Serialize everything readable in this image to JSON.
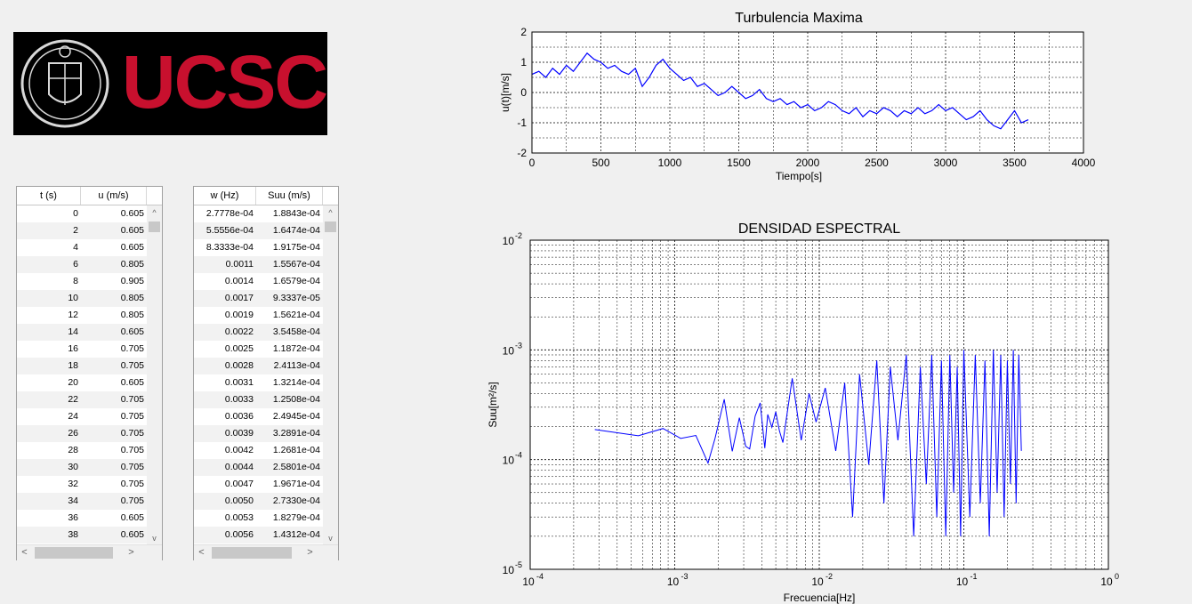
{
  "logo": {
    "text": "UCSC",
    "brand_color": "#c8102e"
  },
  "time_table": {
    "headers": [
      "t (s)",
      "u (m/s)"
    ],
    "rows": [
      [
        "0",
        "0.605"
      ],
      [
        "2",
        "0.605"
      ],
      [
        "4",
        "0.605"
      ],
      [
        "6",
        "0.805"
      ],
      [
        "8",
        "0.905"
      ],
      [
        "10",
        "0.805"
      ],
      [
        "12",
        "0.805"
      ],
      [
        "14",
        "0.605"
      ],
      [
        "16",
        "0.705"
      ],
      [
        "18",
        "0.705"
      ],
      [
        "20",
        "0.605"
      ],
      [
        "22",
        "0.705"
      ],
      [
        "24",
        "0.705"
      ],
      [
        "26",
        "0.705"
      ],
      [
        "28",
        "0.705"
      ],
      [
        "30",
        "0.705"
      ],
      [
        "32",
        "0.705"
      ],
      [
        "34",
        "0.705"
      ],
      [
        "36",
        "0.605"
      ],
      [
        "38",
        "0.605"
      ]
    ],
    "scroll_up": "^",
    "scroll_down": "v",
    "scroll_left": "<",
    "scroll_right": ">"
  },
  "freq_table": {
    "headers": [
      "w (Hz)",
      "Suu (m/s)"
    ],
    "rows": [
      [
        "2.7778e-04",
        "1.8843e-04"
      ],
      [
        "5.5556e-04",
        "1.6474e-04"
      ],
      [
        "8.3333e-04",
        "1.9175e-04"
      ],
      [
        "0.0011",
        "1.5567e-04"
      ],
      [
        "0.0014",
        "1.6579e-04"
      ],
      [
        "0.0017",
        "9.3337e-05"
      ],
      [
        "0.0019",
        "1.5621e-04"
      ],
      [
        "0.0022",
        "3.5458e-04"
      ],
      [
        "0.0025",
        "1.1872e-04"
      ],
      [
        "0.0028",
        "2.4113e-04"
      ],
      [
        "0.0031",
        "1.3214e-04"
      ],
      [
        "0.0033",
        "1.2508e-04"
      ],
      [
        "0.0036",
        "2.4945e-04"
      ],
      [
        "0.0039",
        "3.2891e-04"
      ],
      [
        "0.0042",
        "1.2681e-04"
      ],
      [
        "0.0044",
        "2.5801e-04"
      ],
      [
        "0.0047",
        "1.9671e-04"
      ],
      [
        "0.0050",
        "2.7330e-04"
      ],
      [
        "0.0053",
        "1.8279e-04"
      ],
      [
        "0.0056",
        "1.4312e-04"
      ]
    ],
    "scroll_up": "^",
    "scroll_down": "v",
    "scroll_left": "<",
    "scroll_right": ">"
  },
  "chart_data": [
    {
      "type": "line",
      "title": "Turbulencia Maxima",
      "xlabel": "Tiempo[s]",
      "ylabel": "u(t)[m/s]",
      "xlim": [
        0,
        4000
      ],
      "ylim": [
        -2,
        2
      ],
      "xticks": [
        0,
        500,
        1000,
        1500,
        2000,
        2500,
        3000,
        3500,
        4000
      ],
      "yticks": [
        -2,
        -1,
        0,
        1,
        2
      ],
      "grid": true,
      "color": "#0000ff",
      "x": [
        0,
        50,
        100,
        150,
        200,
        250,
        300,
        350,
        400,
        450,
        500,
        550,
        600,
        650,
        700,
        750,
        800,
        850,
        900,
        950,
        1000,
        1050,
        1100,
        1150,
        1200,
        1250,
        1300,
        1350,
        1400,
        1450,
        1500,
        1550,
        1600,
        1650,
        1700,
        1750,
        1800,
        1850,
        1900,
        1950,
        2000,
        2050,
        2100,
        2150,
        2200,
        2250,
        2300,
        2350,
        2400,
        2450,
        2500,
        2550,
        2600,
        2650,
        2700,
        2750,
        2800,
        2850,
        2900,
        2950,
        3000,
        3050,
        3100,
        3150,
        3200,
        3250,
        3300,
        3350,
        3400,
        3450,
        3500,
        3550,
        3600
      ],
      "values": [
        0.6,
        0.7,
        0.5,
        0.8,
        0.6,
        0.9,
        0.7,
        1.0,
        1.3,
        1.1,
        1.0,
        0.8,
        0.9,
        0.7,
        0.6,
        0.8,
        0.2,
        0.5,
        0.9,
        1.1,
        0.8,
        0.6,
        0.4,
        0.5,
        0.2,
        0.3,
        0.1,
        -0.1,
        0.0,
        0.2,
        0.0,
        -0.2,
        -0.1,
        0.1,
        -0.2,
        -0.3,
        -0.2,
        -0.4,
        -0.3,
        -0.5,
        -0.4,
        -0.6,
        -0.5,
        -0.3,
        -0.4,
        -0.6,
        -0.7,
        -0.5,
        -0.8,
        -0.6,
        -0.7,
        -0.5,
        -0.6,
        -0.8,
        -0.6,
        -0.7,
        -0.5,
        -0.7,
        -0.6,
        -0.4,
        -0.6,
        -0.5,
        -0.7,
        -0.9,
        -0.8,
        -0.6,
        -0.9,
        -1.1,
        -1.2,
        -0.9,
        -0.6,
        -1.0,
        -0.9
      ]
    },
    {
      "type": "line",
      "title": "DENSIDAD ESPECTRAL",
      "xlabel": "Frecuencia[Hz]",
      "ylabel": "Suu[m²/s]",
      "xscale": "log",
      "yscale": "log",
      "xlim": [
        0.0001,
        1
      ],
      "ylim": [
        1e-05,
        0.01
      ],
      "xtick_base": "10",
      "xtick_exponents": [
        "-4",
        "-3",
        "-2",
        "-1",
        "0"
      ],
      "ytick_exponents": [
        "-5",
        "-4",
        "-3",
        "-2"
      ],
      "grid": true,
      "color": "#0000ff",
      "x": [
        0.00028,
        0.00056,
        0.00083,
        0.0011,
        0.0014,
        0.0017,
        0.0019,
        0.0022,
        0.0025,
        0.0028,
        0.0031,
        0.0033,
        0.0036,
        0.0039,
        0.0042,
        0.0044,
        0.0047,
        0.005,
        0.0053,
        0.0056,
        0.0065,
        0.0075,
        0.0085,
        0.0095,
        0.011,
        0.013,
        0.015,
        0.017,
        0.019,
        0.022,
        0.025,
        0.028,
        0.031,
        0.035,
        0.04,
        0.045,
        0.05,
        0.055,
        0.06,
        0.065,
        0.07,
        0.075,
        0.08,
        0.085,
        0.09,
        0.095,
        0.1,
        0.11,
        0.12,
        0.13,
        0.14,
        0.15,
        0.16,
        0.17,
        0.18,
        0.19,
        0.2,
        0.21,
        0.22,
        0.23,
        0.24,
        0.25
      ],
      "values": [
        0.000188,
        0.000165,
        0.000192,
        0.000156,
        0.000166,
        9.3e-05,
        0.000156,
        0.000355,
        0.000119,
        0.000241,
        0.000132,
        0.000125,
        0.000249,
        0.000329,
        0.000127,
        0.000258,
        0.000197,
        0.000273,
        0.000183,
        0.000143,
        0.00055,
        0.00015,
        0.0004,
        0.00022,
        0.00045,
        0.00012,
        0.0005,
        3e-05,
        0.0006,
        9e-05,
        0.0008,
        4e-05,
        0.0007,
        0.00015,
        0.0009,
        2e-05,
        0.0007,
        6e-05,
        0.0009,
        3e-05,
        0.0008,
        2e-05,
        0.0009,
        5e-05,
        0.0007,
        2e-05,
        0.001,
        3e-05,
        0.0009,
        4e-05,
        0.0008,
        2e-05,
        0.001,
        5e-05,
        0.0009,
        3e-05,
        0.0008,
        6e-05,
        0.001,
        4e-05,
        0.0009,
        0.00012
      ]
    }
  ]
}
